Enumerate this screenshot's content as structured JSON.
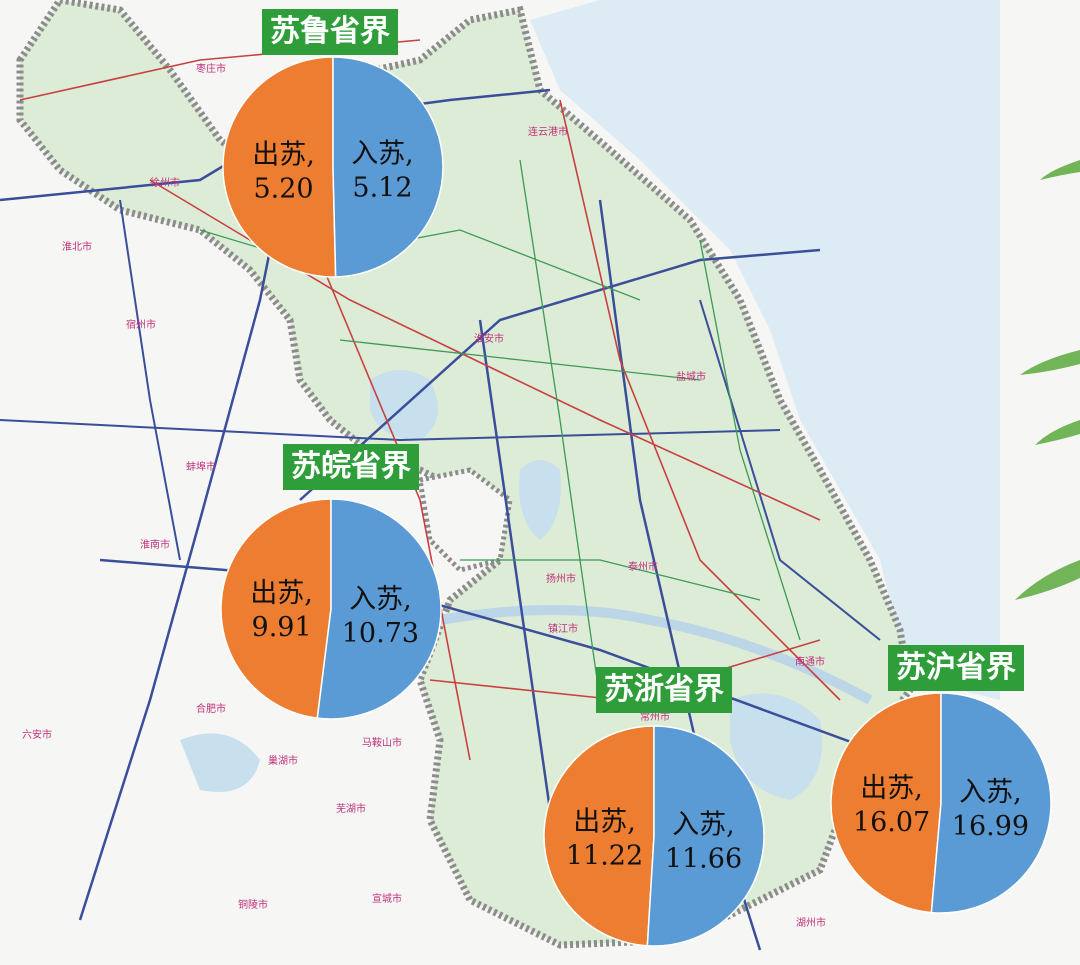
{
  "legend": {
    "in_color": "#5b9bd5",
    "out_color": "#ed7d31"
  },
  "map_labels": [
    "连云港市",
    "徐州市",
    "淮北市",
    "宿州市",
    "蚌埠市",
    "淮南市",
    "合肥市",
    "六安市",
    "淮安市",
    "盐城市",
    "扬州市",
    "泰州市",
    "镇江市",
    "南通市",
    "马鞍山市",
    "芜湖市",
    "常州市",
    "宣城市",
    "铜陵市",
    "巢湖市",
    "枣庄市",
    "湖州市"
  ],
  "pies": [
    {
      "id": "su-lu",
      "title": "苏鲁省界",
      "in_label": "入苏,",
      "in_value": 5.12,
      "in_text": "5.12",
      "out_label": "出苏,",
      "out_value": 5.2,
      "out_text": "5.20"
    },
    {
      "id": "su-wan",
      "title": "苏皖省界",
      "in_label": "入苏,",
      "in_value": 10.73,
      "in_text": "10.73",
      "out_label": "出苏,",
      "out_value": 9.91,
      "out_text": "9.91"
    },
    {
      "id": "su-zhe",
      "title": "苏浙省界",
      "in_label": "入苏,",
      "in_value": 11.66,
      "in_text": "11.66",
      "out_label": "出苏,",
      "out_value": 11.22,
      "out_text": "11.22"
    },
    {
      "id": "su-hu",
      "title": "苏沪省界",
      "in_label": "入苏,",
      "in_value": 16.99,
      "in_text": "16.99",
      "out_label": "出苏,",
      "out_value": 16.07,
      "out_text": "16.07"
    }
  ]
}
